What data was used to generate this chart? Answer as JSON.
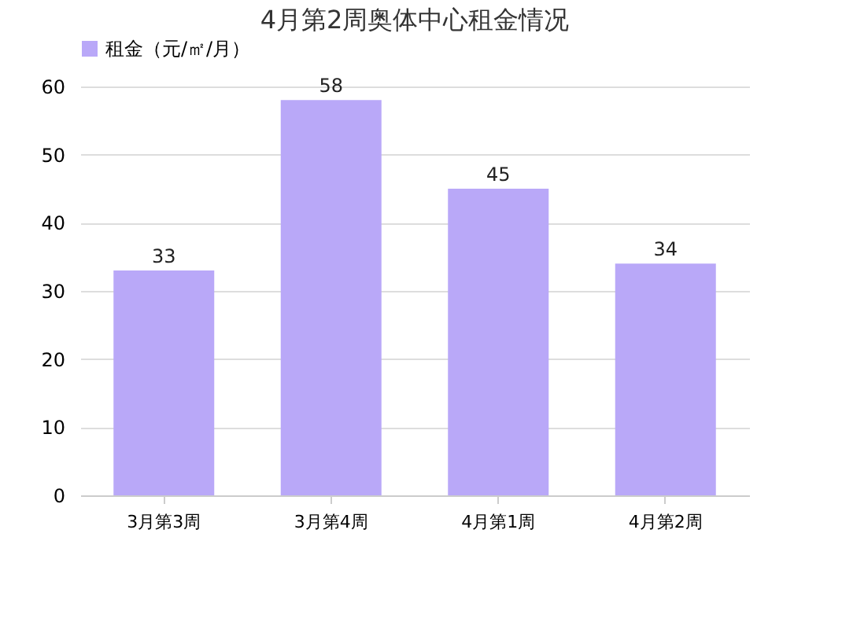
{
  "chart_data": {
    "type": "bar",
    "title": "4月第2周奥体中心租金情况",
    "categories": [
      "3月第3周",
      "3月第4周",
      "4月第1周",
      "4月第2周"
    ],
    "series": [
      {
        "name": "租金（元/㎡/月）",
        "color": "#b9a8f8",
        "values": [
          33,
          58,
          45,
          34
        ]
      }
    ],
    "ylim": [
      0,
      60
    ],
    "yticks": [
      0,
      10,
      20,
      30,
      40,
      50,
      60
    ],
    "grid": "y",
    "legend": "top",
    "data_labels": true
  }
}
